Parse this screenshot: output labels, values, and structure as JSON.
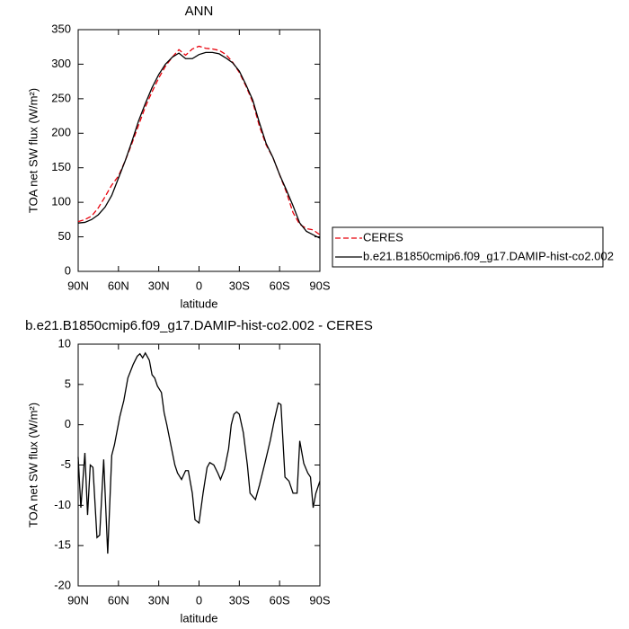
{
  "chart_data": [
    {
      "type": "line",
      "title": "ANN",
      "xlabel": "latitude",
      "ylabel": "TOA net SW flux (W/m²)",
      "x": [
        90,
        85,
        80,
        75,
        70,
        65,
        60,
        55,
        50,
        45,
        40,
        35,
        30,
        25,
        20,
        15,
        10,
        5,
        0,
        -5,
        -10,
        -15,
        -20,
        -25,
        -30,
        -35,
        -40,
        -45,
        -50,
        -55,
        -60,
        -65,
        -70,
        -75,
        -80,
        -85,
        -90
      ],
      "xlim": [
        90,
        -90
      ],
      "xticks": [
        {
          "value": 90,
          "label": "90N"
        },
        {
          "value": 60,
          "label": "60N"
        },
        {
          "value": 30,
          "label": "30N"
        },
        0,
        {
          "value": -30,
          "label": "30S"
        },
        {
          "value": -60,
          "label": "60S"
        },
        {
          "value": -90,
          "label": "90S"
        }
      ],
      "ylim": [
        0,
        350
      ],
      "yticks": [
        0,
        50,
        100,
        150,
        200,
        250,
        300,
        350
      ],
      "legend": "outside-right",
      "series": [
        {
          "name": "CERES",
          "color": "#e8000b",
          "line_style": "dashed",
          "values": [
            72,
            75,
            80,
            92,
            108,
            125,
            138,
            160,
            185,
            212,
            238,
            260,
            280,
            297,
            310,
            321,
            313,
            322,
            326,
            323,
            322,
            320,
            314,
            303,
            288,
            268,
            245,
            210,
            183,
            165,
            140,
            115,
            85,
            68,
            62,
            60,
            53
          ]
        },
        {
          "name": "b.e21.B1850cmip6.f09_g17.DAMIP-hist-co2.002",
          "color": "#000000",
          "line_style": "solid",
          "values": [
            70,
            71,
            75,
            82,
            93,
            110,
            135,
            160,
            188,
            218,
            243,
            266,
            285,
            300,
            310,
            316,
            308,
            308,
            314,
            317,
            317,
            315,
            309,
            302,
            290,
            270,
            248,
            215,
            185,
            165,
            140,
            118,
            95,
            70,
            58,
            53,
            48
          ]
        }
      ]
    },
    {
      "type": "line",
      "title": "b.e21.B1850cmip6.f09_g17.DAMIP-hist-co2.002 - CERES",
      "xlabel": "latitude",
      "ylabel": "TOA net SW flux (W/m²)",
      "x": [
        90,
        88,
        85,
        83,
        81,
        79,
        76,
        74,
        71,
        68,
        65,
        63,
        59,
        56,
        53,
        49,
        46,
        44,
        42,
        40,
        37,
        35,
        33,
        31,
        28,
        26,
        24,
        21,
        18,
        16,
        13,
        10,
        8,
        5,
        3,
        0,
        -3,
        -6,
        -8,
        -11,
        -14,
        -16,
        -19,
        -22,
        -24,
        -26,
        -28,
        -30,
        -33,
        -36,
        -38,
        -42,
        -45,
        -49,
        -53,
        -56,
        -59,
        -61,
        -64,
        -67,
        -70,
        -73,
        -75,
        -78,
        -81,
        -83,
        -85,
        -87,
        -90
      ],
      "xlim": [
        90,
        -90
      ],
      "xticks": [
        {
          "value": 90,
          "label": "90N"
        },
        {
          "value": 60,
          "label": "60N"
        },
        {
          "value": 30,
          "label": "30N"
        },
        0,
        {
          "value": -30,
          "label": "30S"
        },
        {
          "value": -60,
          "label": "60S"
        },
        {
          "value": -90,
          "label": "90S"
        }
      ],
      "ylim": [
        -20,
        10
      ],
      "yticks": [
        -20,
        -15,
        -10,
        -5,
        0,
        5,
        10
      ],
      "color": "#000000",
      "values": [
        -4,
        -10.3,
        -3.5,
        -11.2,
        -5,
        -5.3,
        -14,
        -13.7,
        -4.3,
        -16,
        -3.8,
        -2.5,
        1,
        3,
        5.8,
        7.5,
        8.5,
        8.8,
        8.3,
        8.9,
        8,
        6.2,
        5.8,
        4.8,
        4,
        1.5,
        0,
        -2.5,
        -5,
        -6,
        -6.8,
        -5.7,
        -5.7,
        -8.5,
        -11.8,
        -12.2,
        -8.5,
        -5.3,
        -4.7,
        -5,
        -6,
        -6.8,
        -5.5,
        -3,
        0,
        1.3,
        1.6,
        1.3,
        -1,
        -5,
        -8.5,
        -9.3,
        -7.5,
        -4.8,
        -2,
        0.5,
        2.7,
        2.5,
        -6.5,
        -7,
        -8.5,
        -8.5,
        -2,
        -4.8,
        -6,
        -6.5,
        -10.3,
        -8.5,
        -7
      ]
    }
  ]
}
